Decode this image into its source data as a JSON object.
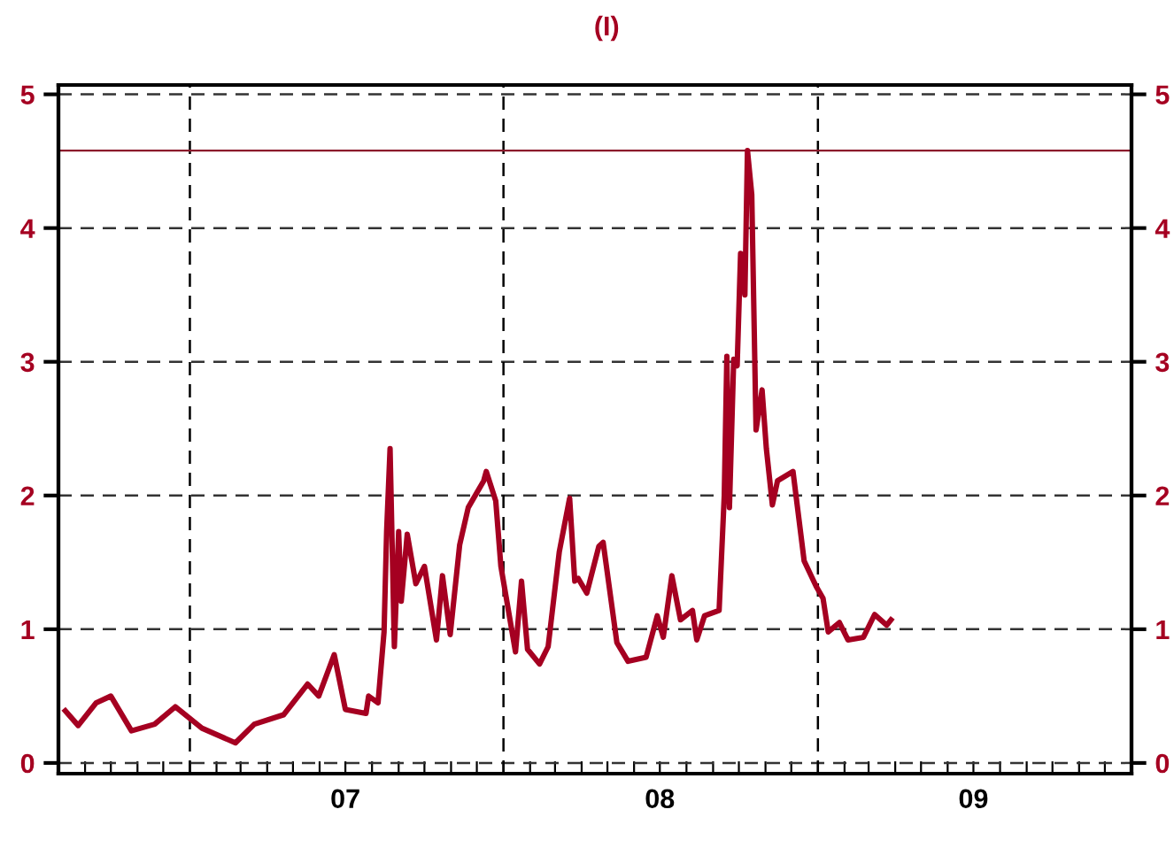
{
  "chart_data": {
    "type": "line",
    "title": "(I)",
    "xlim": [
      "2006-08-01",
      "2010-01-01"
    ],
    "xticks": [
      {
        "value": "2006-09-01",
        "label": null
      },
      {
        "value": "2006-10-01",
        "label": null
      },
      {
        "value": "2006-11-01",
        "label": null
      },
      {
        "value": "2006-12-01",
        "label": null
      },
      {
        "value": "2007-01-01",
        "label": null
      },
      {
        "value": "2007-02-01",
        "label": null
      },
      {
        "value": "2007-03-01",
        "label": null
      },
      {
        "value": "2007-04-01",
        "label": null
      },
      {
        "value": "2007-05-01",
        "label": null
      },
      {
        "value": "2007-06-01",
        "label": null
      },
      {
        "value": "2007-07-01",
        "label": "07"
      },
      {
        "value": "2007-08-01",
        "label": null
      },
      {
        "value": "2007-09-01",
        "label": null
      },
      {
        "value": "2007-10-01",
        "label": null
      },
      {
        "value": "2007-11-01",
        "label": null
      },
      {
        "value": "2007-12-01",
        "label": null
      },
      {
        "value": "2008-01-01",
        "label": null
      },
      {
        "value": "2008-02-01",
        "label": null
      },
      {
        "value": "2008-03-01",
        "label": null
      },
      {
        "value": "2008-04-01",
        "label": null
      },
      {
        "value": "2008-05-01",
        "label": null
      },
      {
        "value": "2008-06-01",
        "label": null
      },
      {
        "value": "2008-07-01",
        "label": "08"
      },
      {
        "value": "2008-08-01",
        "label": null
      },
      {
        "value": "2008-09-01",
        "label": null
      },
      {
        "value": "2008-10-01",
        "label": null
      },
      {
        "value": "2008-11-01",
        "label": null
      },
      {
        "value": "2008-12-01",
        "label": null
      },
      {
        "value": "2009-01-01",
        "label": null
      },
      {
        "value": "2009-02-01",
        "label": null
      },
      {
        "value": "2009-03-01",
        "label": null
      },
      {
        "value": "2009-04-01",
        "label": null
      },
      {
        "value": "2009-05-01",
        "label": null
      },
      {
        "value": "2009-06-01",
        "label": null
      },
      {
        "value": "2009-07-01",
        "label": "09"
      },
      {
        "value": "2009-08-01",
        "label": null
      },
      {
        "value": "2009-09-01",
        "label": null
      },
      {
        "value": "2009-10-01",
        "label": null
      },
      {
        "value": "2009-11-01",
        "label": null
      },
      {
        "value": "2009-12-01",
        "label": null
      }
    ],
    "ylim": [
      -0.08,
      5.07
    ],
    "yticks": [
      0,
      1,
      2,
      3,
      4,
      5
    ],
    "y2lim": [
      -0.08,
      5.07
    ],
    "y2ticks": [
      0,
      1,
      2,
      3,
      4,
      5
    ],
    "grid": "y",
    "marker": "none",
    "line_style": "solid",
    "ref_lines": [
      {
        "axis": "x",
        "value": "2007-01-01",
        "line_style": "dashed",
        "color": "#000000"
      },
      {
        "axis": "x",
        "value": "2008-01-01",
        "line_style": "dashed",
        "color": "#000000"
      },
      {
        "axis": "x",
        "value": "2009-01-01",
        "line_style": "dashed",
        "color": "#000000"
      },
      {
        "axis": "y",
        "value": 4.58,
        "line_style": "solid",
        "color": "#8b1a2b"
      }
    ],
    "series": [
      {
        "color": "#a50021",
        "x": [
          "2006-08-09",
          "2006-08-24",
          "2006-09-14",
          "2006-10-01",
          "2006-10-25",
          "2006-11-21",
          "2006-12-15",
          "2007-01-15",
          "2007-02-23",
          "2007-03-17",
          "2007-04-20",
          "2007-05-18",
          "2007-05-31",
          "2007-06-18",
          "2007-07-01",
          "2007-07-25",
          "2007-07-28",
          "2007-08-08",
          "2007-08-15",
          "2007-08-18",
          "2007-08-22",
          "2007-08-27",
          "2007-09-01",
          "2007-09-04",
          "2007-09-11",
          "2007-09-21",
          "2007-10-01",
          "2007-10-15",
          "2007-10-22",
          "2007-10-31",
          "2007-11-11",
          "2007-11-21",
          "2007-12-09",
          "2007-12-12",
          "2007-12-23",
          "2007-12-29",
          "2008-01-15",
          "2008-01-22",
          "2008-01-29",
          "2008-02-12",
          "2008-02-22",
          "2008-03-06",
          "2008-03-18",
          "2008-03-24",
          "2008-03-28",
          "2008-04-07",
          "2008-04-21",
          "2008-04-26",
          "2008-05-12",
          "2008-05-25",
          "2008-06-15",
          "2008-06-28",
          "2008-07-05",
          "2008-07-15",
          "2008-07-25",
          "2008-08-08",
          "2008-08-13",
          "2008-08-22",
          "2008-09-08",
          "2008-09-14",
          "2008-09-17",
          "2008-09-20",
          "2008-09-25",
          "2008-09-29",
          "2008-10-03",
          "2008-10-08",
          "2008-10-11",
          "2008-10-16",
          "2008-10-21",
          "2008-10-28",
          "2008-11-02",
          "2008-11-09",
          "2008-11-15",
          "2008-12-03",
          "2008-12-16",
          "2008-12-30",
          "2009-01-07",
          "2009-01-13",
          "2009-01-26",
          "2009-02-05",
          "2009-02-23",
          "2009-03-08",
          "2009-03-22",
          "2009-03-27"
        ],
        "values": [
          0.39,
          0.28,
          0.45,
          0.5,
          0.24,
          0.29,
          0.42,
          0.26,
          0.15,
          0.29,
          0.36,
          0.59,
          0.5,
          0.81,
          0.4,
          0.37,
          0.5,
          0.45,
          0.98,
          1.73,
          2.35,
          0.87,
          1.73,
          1.21,
          1.71,
          1.34,
          1.47,
          0.92,
          1.4,
          0.96,
          1.63,
          1.91,
          2.11,
          2.18,
          1.96,
          1.47,
          0.83,
          1.36,
          0.85,
          0.74,
          0.87,
          1.58,
          1.98,
          1.36,
          1.38,
          1.27,
          1.62,
          1.65,
          0.9,
          0.76,
          0.79,
          1.1,
          0.94,
          1.4,
          1.07,
          1.14,
          0.92,
          1.1,
          1.14,
          2.0,
          3.04,
          1.91,
          3.02,
          2.97,
          3.81,
          3.5,
          4.58,
          4.25,
          2.49,
          2.79,
          2.35,
          1.93,
          2.11,
          2.18,
          1.51,
          1.32,
          1.23,
          0.98,
          1.05,
          0.92,
          0.94,
          1.11,
          1.03,
          1.07
        ]
      }
    ]
  }
}
